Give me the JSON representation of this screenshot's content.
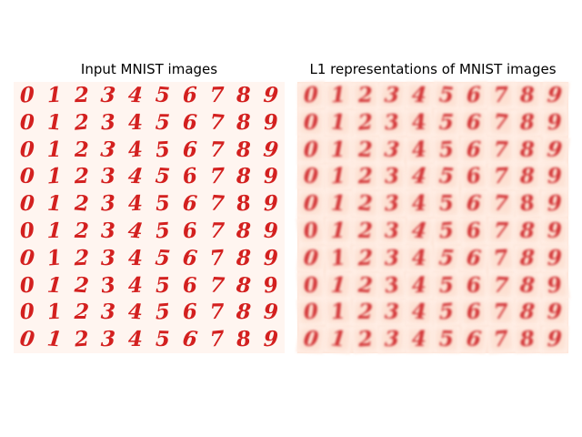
{
  "figure": {
    "left_panel": {
      "title": "Input MNIST images"
    },
    "right_panel": {
      "title": "L1 representations of MNIST images"
    }
  },
  "grid": {
    "rows": 10,
    "columns": 10,
    "column_digits": [
      "0",
      "1",
      "2",
      "3",
      "4",
      "5",
      "6",
      "7",
      "8",
      "9"
    ]
  },
  "colors": {
    "digit": "#d3201f",
    "left_background": "#fff5f0",
    "right_background": "#fee3d6"
  }
}
